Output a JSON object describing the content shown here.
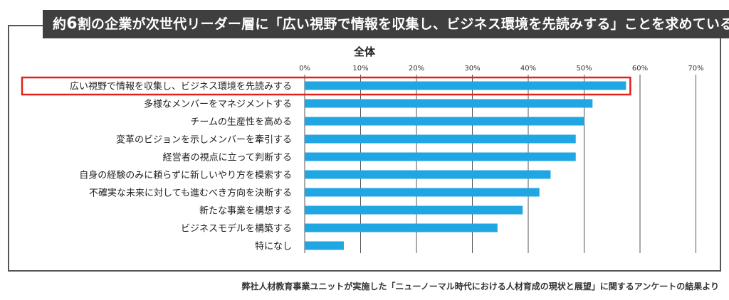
{
  "header": {
    "title_prefix": "約",
    "title_number": "6",
    "title_suffix": "割の企業が次世代リーダー層に「広い視野で情報を収集し、ビジネス環境を先読みする」ことを求めている"
  },
  "footnote": "弊社人材教育事業ユニットが実施した「ニューノーマル時代における人材育成の現状と展望」に関するアンケートの結果より",
  "colors": {
    "bar": "#1fa6e3",
    "highlight": "#e3201b",
    "grid": "#555555",
    "banner": "#3f3f3f"
  },
  "chart_data": {
    "type": "bar",
    "orientation": "horizontal",
    "title": "全体",
    "xlim": [
      0,
      70
    ],
    "x_ticks": [
      "0%",
      "10%",
      "20%",
      "30%",
      "40%",
      "50%",
      "60%",
      "70%"
    ],
    "grid": true,
    "categories": [
      "広い視野で情報を収集し、ビジネス環境を先読みする",
      "多様なメンバーをマネジメントする",
      "チームの生産性を高める",
      "変革のビジョンを示しメンバーを牽引する",
      "経営者の視点に立って判断する",
      "自身の経験のみに頼らずに新しいやり方を模索する",
      "不確実な未来に対しても進むべき方向を決断する",
      "新たな事業を構想する",
      "ビジネスモデルを構築する",
      "特になし"
    ],
    "values": [
      57.5,
      51.5,
      50,
      48.5,
      48.5,
      44,
      42,
      39,
      34.5,
      7
    ],
    "highlighted_index": 0
  }
}
